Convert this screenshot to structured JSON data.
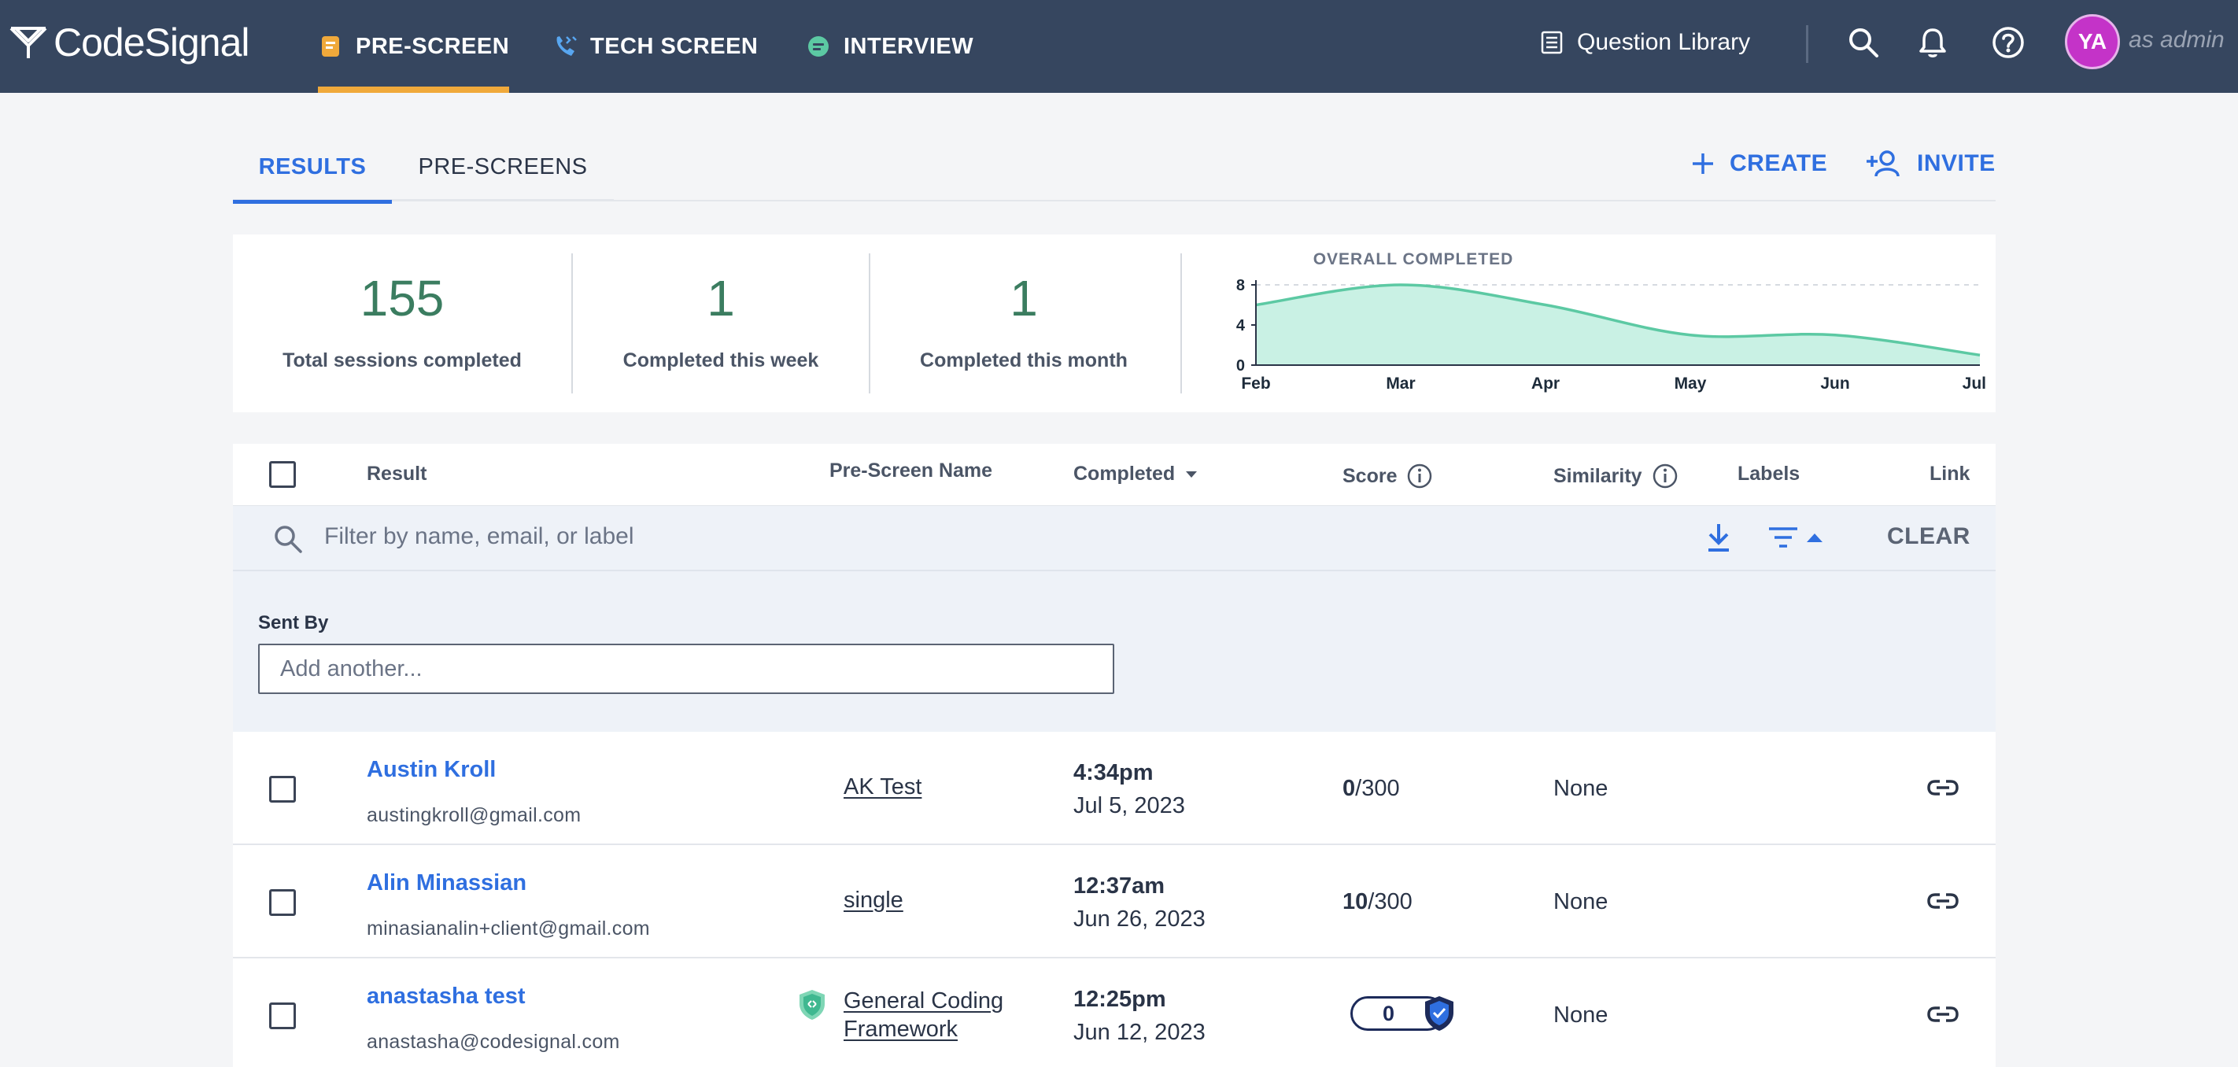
{
  "nav": {
    "logo_text": "CodeSignal",
    "tabs": [
      {
        "label": "PRE-SCREEN",
        "active": true
      },
      {
        "label": "TECH SCREEN",
        "active": false
      },
      {
        "label": "INTERVIEW",
        "active": false
      }
    ],
    "question_library": "Question Library",
    "avatar_initials": "YA",
    "role_text": "as admin",
    "accent_color": "#f0a93b"
  },
  "subtabs": [
    {
      "label": "RESULTS",
      "active": true
    },
    {
      "label": "PRE-SCREENS",
      "active": false
    }
  ],
  "actions": {
    "create": "CREATE",
    "invite": "INVITE"
  },
  "stats": [
    {
      "value": "155",
      "label": "Total sessions completed"
    },
    {
      "value": "1",
      "label": "Completed this week"
    },
    {
      "value": "1",
      "label": "Completed this month"
    }
  ],
  "chart_data": {
    "type": "area",
    "title": "OVERALL COMPLETED",
    "categories": [
      "Feb",
      "Mar",
      "Apr",
      "May",
      "Jun",
      "Jul"
    ],
    "values": [
      6,
      8,
      6,
      3,
      3,
      1
    ],
    "y_ticks": [
      "0",
      "4",
      "8"
    ],
    "ylim": [
      0,
      8
    ],
    "color": "#5cc9a3",
    "fill": "#c9f1e4"
  },
  "table": {
    "headers": {
      "result": "Result",
      "prescreen": "Pre-Screen Name",
      "completed": "Completed",
      "score": "Score",
      "similarity": "Similarity",
      "labels": "Labels",
      "link": "Link"
    },
    "filter_placeholder": "Filter by name, email, or label",
    "clear": "CLEAR",
    "sent_by_label": "Sent By",
    "sent_by_placeholder": "Add another...",
    "rows": [
      {
        "name": "Austin Kroll",
        "email": "austingkroll@gmail.com",
        "prescreen": "AK Test",
        "time": "4:34pm",
        "date": "Jul 5, 2023",
        "score": "0",
        "score_max": "/300",
        "similarity": "None"
      },
      {
        "name": "Alin Minassian",
        "email": "minasianalin+client@gmail.com",
        "prescreen": "single",
        "time": "12:37am",
        "date": "Jun 26, 2023",
        "score": "10",
        "score_max": "/300",
        "similarity": "None"
      },
      {
        "name": "anastasha test",
        "email": "anastasha@codesignal.com",
        "prescreen_line1": "General Coding",
        "prescreen_line2": "Framework",
        "time": "12:25pm",
        "date": "Jun 12, 2023",
        "score": "0",
        "similarity": "None"
      }
    ]
  }
}
